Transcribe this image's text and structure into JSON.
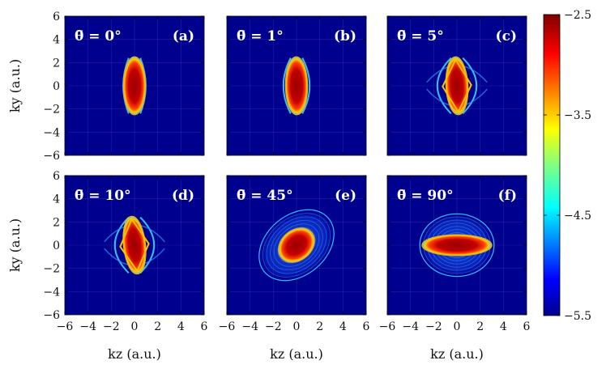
{
  "chart_data": {
    "type": "heatmap",
    "colormap": "jet",
    "colorbar": {
      "range": [
        -5.5,
        -2.5
      ],
      "ticks": [
        "-2.5",
        "-3.5",
        "-4.5",
        "-5.5"
      ],
      "tick_values": [
        -2.5,
        -3.5,
        -4.5,
        -5.5
      ]
    },
    "xlabel": "k_z (a.u.)",
    "ylabel": "k_y (a.u.)",
    "xlim": [
      -6,
      6
    ],
    "ylim": [
      -6,
      6
    ],
    "x_ticks": [
      "-6",
      "-4",
      "-2",
      "0",
      "2",
      "4",
      "6"
    ],
    "y_ticks": [
      "6",
      "4",
      "2",
      "0",
      "-2",
      "-4",
      "-6"
    ],
    "x_tick_values": [
      -6,
      -4,
      -2,
      0,
      2,
      4,
      6
    ],
    "y_tick_values": [
      6,
      4,
      2,
      0,
      -2,
      -4,
      -6
    ],
    "panels": [
      {
        "label": "(a)",
        "theta_text": "θ̄ = 0°",
        "theta_deg": 0
      },
      {
        "label": "(b)",
        "theta_text": "θ̄ = 1°",
        "theta_deg": 1
      },
      {
        "label": "(c)",
        "theta_text": "θ̄ = 5°",
        "theta_deg": 5
      },
      {
        "label": "(d)",
        "theta_text": "θ̄ = 10°",
        "theta_deg": 10
      },
      {
        "label": "(e)",
        "theta_text": "θ̄ = 45°",
        "theta_deg": 45
      },
      {
        "label": "(f)",
        "theta_text": "θ̄ = 90°",
        "theta_deg": 90
      }
    ]
  }
}
